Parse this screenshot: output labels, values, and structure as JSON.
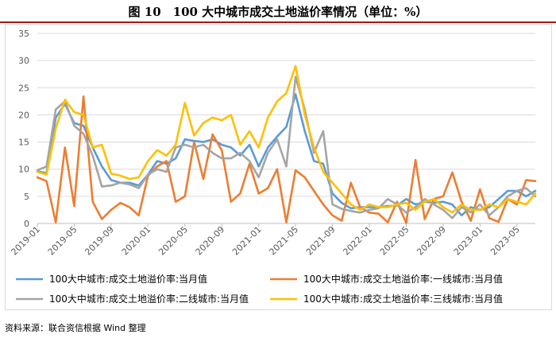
{
  "title": "图 10　100 大中城市成交土地溢价率情况（单位：%）",
  "source": "资料来源：联合资信根据 Wind 整理",
  "chart_data": {
    "type": "line",
    "ylim": [
      0,
      35
    ],
    "yticks": [
      0,
      5,
      10,
      15,
      20,
      25,
      30,
      35
    ],
    "x_tick_labels": [
      "2019-01",
      "2019-05",
      "2019-09",
      "2020-01",
      "2020-05",
      "2020-09",
      "2021-01",
      "2021-05",
      "2021-09",
      "2022-01",
      "2022-05",
      "2022-09",
      "2023-01",
      "2023-05"
    ],
    "x": [
      "2019-01",
      "2019-02",
      "2019-03",
      "2019-04",
      "2019-05",
      "2019-06",
      "2019-07",
      "2019-08",
      "2019-09",
      "2019-10",
      "2019-11",
      "2019-12",
      "2020-01",
      "2020-02",
      "2020-03",
      "2020-04",
      "2020-05",
      "2020-06",
      "2020-07",
      "2020-08",
      "2020-09",
      "2020-10",
      "2020-11",
      "2020-12",
      "2021-01",
      "2021-02",
      "2021-03",
      "2021-04",
      "2021-05",
      "2021-06",
      "2021-07",
      "2021-08",
      "2021-09",
      "2021-10",
      "2021-11",
      "2021-12",
      "2022-01",
      "2022-02",
      "2022-03",
      "2022-04",
      "2022-05",
      "2022-06",
      "2022-07",
      "2022-08",
      "2022-09",
      "2022-10",
      "2022-11",
      "2022-12",
      "2023-01",
      "2023-02",
      "2023-03",
      "2023-04",
      "2023-05",
      "2023-06",
      "2023-07"
    ],
    "grid": true,
    "legend_position": "bottom",
    "series": [
      {
        "name": "100大中城市:成交土地溢价率:当月值",
        "color": "#5b9bd5",
        "values": [
          9.6,
          9.3,
          19.5,
          22.0,
          18.5,
          18.0,
          14.0,
          10.5,
          8.0,
          7.5,
          7.5,
          7.0,
          9.0,
          11.5,
          11.0,
          12.0,
          15.5,
          15.2,
          15.0,
          15.5,
          14.5,
          14.0,
          12.5,
          14.5,
          10.5,
          14.0,
          16.0,
          17.8,
          23.8,
          17.0,
          11.5,
          11.0,
          5.5,
          3.8,
          2.8,
          3.0,
          3.0,
          3.0,
          3.2,
          3.3,
          4.5,
          3.5,
          4.0,
          3.8,
          4.0,
          3.5,
          1.5,
          3.0,
          2.5,
          3.0,
          4.5,
          6.0,
          6.0,
          5.0,
          6.0
        ]
      },
      {
        "name": "100大中城市:成交土地溢价率:一线城市:当月值",
        "color": "#ed7d31",
        "values": [
          8.5,
          7.8,
          0.2,
          14.0,
          3.2,
          23.4,
          4.0,
          0.8,
          2.5,
          3.8,
          3.0,
          1.5,
          8.8,
          10.5,
          11.5,
          4.0,
          5.0,
          15.0,
          8.2,
          16.4,
          13.5,
          4.0,
          5.5,
          11.0,
          5.5,
          6.5,
          10.0,
          0.2,
          9.8,
          8.5,
          6.0,
          3.5,
          1.5,
          0.5,
          7.5,
          3.0,
          2.0,
          1.8,
          0.2,
          4.0,
          0.1,
          11.7,
          0.8,
          4.5,
          5.0,
          9.4,
          4.0,
          0.5,
          6.3,
          1.0,
          0.3,
          4.5,
          3.5,
          8.0,
          7.8
        ]
      },
      {
        "name": "100大中城市:成交土地溢价率:二线城市:当月值",
        "color": "#a5a5a5",
        "values": [
          9.8,
          10.5,
          21.0,
          22.5,
          18.0,
          16.5,
          12.5,
          6.8,
          7.0,
          7.5,
          7.2,
          6.5,
          9.0,
          10.0,
          9.5,
          14.0,
          14.5,
          14.0,
          14.5,
          13.0,
          12.0,
          12.0,
          13.0,
          11.5,
          8.5,
          13.0,
          15.5,
          10.5,
          27.0,
          21.0,
          13.0,
          17.0,
          3.5,
          2.7,
          2.3,
          2.0,
          2.5,
          2.8,
          4.5,
          3.5,
          2.0,
          3.0,
          4.5,
          3.5,
          2.5,
          1.0,
          3.0,
          2.0,
          3.5,
          1.5,
          3.0,
          5.0,
          6.0,
          6.5,
          5.0
        ]
      },
      {
        "name": "100大中城市:成交土地溢价率:三线城市:当月值",
        "color": "#ffc000",
        "values": [
          9.5,
          9.0,
          17.5,
          22.8,
          20.5,
          20.0,
          14.0,
          14.5,
          9.2,
          8.8,
          8.2,
          8.5,
          11.5,
          13.5,
          12.5,
          14.5,
          22.2,
          16.2,
          18.5,
          19.5,
          19.0,
          20.0,
          14.5,
          17.0,
          14.0,
          19.5,
          22.5,
          24.0,
          29.0,
          20.0,
          14.0,
          9.5,
          7.5,
          5.5,
          3.5,
          2.5,
          3.5,
          3.0,
          3.0,
          3.5,
          3.8,
          2.5,
          4.0,
          4.5,
          3.0,
          2.0,
          3.5,
          2.5,
          2.5,
          3.5,
          3.0,
          4.5,
          4.0,
          3.5,
          5.5
        ]
      }
    ]
  }
}
